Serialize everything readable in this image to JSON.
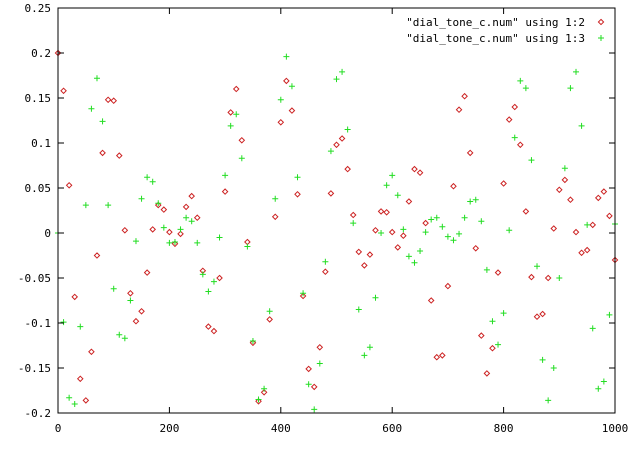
{
  "chart_data": {
    "type": "scatter",
    "title": "",
    "xlabel": "",
    "ylabel": "",
    "xlim": [
      0,
      1000
    ],
    "ylim": [
      -0.2,
      0.25
    ],
    "x_ticks": [
      0,
      200,
      400,
      600,
      800,
      1000
    ],
    "y_ticks": [
      -0.2,
      -0.15,
      -0.1,
      -0.05,
      0,
      0.05,
      0.1,
      0.15,
      0.2,
      0.25
    ],
    "x_tick_labels": [
      "0",
      "200",
      "400",
      "600",
      "800",
      "1000"
    ],
    "y_tick_labels": [
      "-0.2",
      "-0.15",
      "-0.1",
      "-0.05",
      "0",
      "0.05",
      "0.1",
      "0.15",
      "0.2",
      "0.25"
    ],
    "grid": false,
    "legend_position": "top-right",
    "series": [
      {
        "name": "\"dial_tone_c.num\" using 1:2",
        "color": "#cc2222",
        "marker": "diamond",
        "x": [
          0,
          10,
          20,
          30,
          40,
          50,
          60,
          70,
          80,
          90,
          100,
          110,
          120,
          130,
          140,
          150,
          160,
          170,
          180,
          190,
          200,
          210,
          220,
          230,
          240,
          250,
          260,
          270,
          280,
          290,
          300,
          310,
          320,
          330,
          340,
          350,
          360,
          370,
          380,
          390,
          400,
          410,
          420,
          430,
          440,
          450,
          460,
          470,
          480,
          490,
          500,
          510,
          520,
          530,
          540,
          550,
          560,
          570,
          580,
          590,
          600,
          610,
          620,
          630,
          640,
          650,
          660,
          670,
          680,
          690,
          700,
          710,
          720,
          730,
          740,
          750,
          760,
          770,
          780,
          790,
          800,
          810,
          820,
          830,
          840,
          850,
          860,
          870,
          880,
          890,
          900,
          910,
          920,
          930,
          940,
          950,
          960,
          970,
          980,
          990,
          1000
        ],
        "y": [
          0.2,
          0.158,
          0.053,
          -0.071,
          -0.162,
          -0.186,
          -0.132,
          -0.025,
          0.089,
          0.148,
          0.147,
          0.086,
          0.003,
          -0.067,
          -0.098,
          -0.087,
          -0.044,
          0.004,
          0.031,
          0.026,
          0.001,
          -0.012,
          -0.001,
          0.029,
          0.041,
          0.017,
          -0.042,
          -0.104,
          -0.109,
          -0.05,
          0.046,
          0.134,
          0.16,
          0.103,
          -0.01,
          -0.122,
          -0.187,
          -0.177,
          -0.096,
          0.018,
          0.123,
          0.169,
          0.136,
          0.043,
          -0.07,
          -0.151,
          -0.171,
          -0.127,
          -0.043,
          0.044,
          0.098,
          0.105,
          0.071,
          0.02,
          -0.021,
          -0.036,
          -0.024,
          0.003,
          0.024,
          0.023,
          0.001,
          -0.016,
          -0.003,
          0.035,
          0.071,
          0.067,
          0.011,
          -0.075,
          -0.138,
          -0.136,
          -0.059,
          0.052,
          0.137,
          0.152,
          0.089,
          -0.017,
          -0.114,
          -0.156,
          -0.128,
          -0.044,
          0.055,
          0.126,
          0.14,
          0.098,
          0.024,
          -0.049,
          -0.093,
          -0.09,
          -0.05,
          0.005,
          0.048,
          0.059,
          0.037,
          0.001,
          -0.022,
          -0.019,
          0.009,
          0.039,
          0.046,
          0.019,
          -0.03
        ]
      },
      {
        "name": "\"dial_tone_c.num\" using 1:3",
        "color": "#22dd22",
        "marker": "plus",
        "x": [
          0,
          10,
          20,
          30,
          40,
          50,
          60,
          70,
          80,
          90,
          100,
          110,
          120,
          130,
          140,
          150,
          160,
          170,
          180,
          190,
          200,
          210,
          220,
          230,
          240,
          250,
          260,
          270,
          280,
          290,
          300,
          310,
          320,
          330,
          340,
          350,
          360,
          370,
          380,
          390,
          400,
          410,
          420,
          430,
          440,
          450,
          460,
          470,
          480,
          490,
          500,
          510,
          520,
          530,
          540,
          550,
          560,
          570,
          580,
          590,
          600,
          610,
          620,
          630,
          640,
          650,
          660,
          670,
          680,
          690,
          700,
          710,
          720,
          730,
          740,
          750,
          760,
          770,
          780,
          790,
          800,
          810,
          820,
          830,
          840,
          850,
          860,
          870,
          880,
          890,
          900,
          910,
          920,
          930,
          940,
          950,
          960,
          970,
          980,
          990,
          1000
        ],
        "y": [
          0.0,
          -0.099,
          -0.183,
          -0.19,
          -0.104,
          0.031,
          0.138,
          0.172,
          0.124,
          0.031,
          -0.062,
          -0.113,
          -0.117,
          -0.075,
          -0.009,
          0.038,
          0.062,
          0.057,
          0.033,
          0.006,
          -0.011,
          -0.01,
          0.004,
          0.017,
          0.013,
          -0.011,
          -0.046,
          -0.065,
          -0.054,
          -0.005,
          0.064,
          0.119,
          0.132,
          0.083,
          -0.015,
          -0.12,
          -0.185,
          -0.173,
          -0.087,
          0.038,
          0.148,
          0.196,
          0.163,
          0.062,
          -0.067,
          -0.168,
          -0.196,
          -0.145,
          -0.032,
          0.091,
          0.171,
          0.179,
          0.115,
          0.011,
          -0.085,
          -0.136,
          -0.127,
          -0.072,
          0.0,
          0.053,
          0.064,
          0.042,
          0.004,
          -0.026,
          -0.033,
          -0.02,
          0.001,
          0.015,
          0.017,
          0.007,
          -0.004,
          -0.008,
          -0.001,
          0.017,
          0.035,
          0.037,
          0.013,
          -0.041,
          -0.098,
          -0.124,
          -0.089,
          0.003,
          0.106,
          0.169,
          0.161,
          0.081,
          -0.037,
          -0.141,
          -0.186,
          -0.15,
          -0.05,
          0.072,
          0.161,
          0.179,
          0.119,
          0.009,
          -0.106,
          -0.173,
          -0.165,
          -0.091,
          0.01
        ]
      }
    ]
  }
}
